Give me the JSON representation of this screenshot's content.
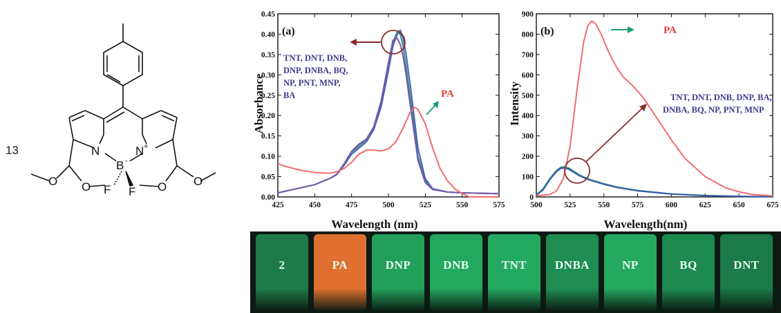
{
  "compound": {
    "number": "13",
    "atoms": {
      "n_left": "N",
      "boron": "B",
      "boron_charge": "-",
      "n_right": "N",
      "n_right_charge": "+",
      "f_left": "F",
      "f_right": "F"
    }
  },
  "colors": {
    "analytes": "#2c8f86",
    "pa": "#f26c6c",
    "analyte_text": "#3d3a8c",
    "pa_text": "#e8383c",
    "arrow_dark": "#8a2a2a",
    "arrow_green": "#19a07a"
  },
  "chart_data": [
    {
      "type": "line",
      "panel": "(a)",
      "xlabel": "Wavelength (nm)",
      "ylabel": "Absorbance",
      "xlim": [
        425,
        575
      ],
      "ylim": [
        0.0,
        0.45
      ],
      "x_ticks": [
        "425",
        "450",
        "475",
        "500",
        "525",
        "550",
        "575"
      ],
      "y_ticks": [
        "0.00",
        "0.05",
        "0.10",
        "0.15",
        "0.20",
        "0.25",
        "0.30",
        "0.35",
        "0.40",
        "0.45"
      ],
      "annotations": {
        "group": [
          "TNT, DNT, DNB,",
          "DNP, DNBA, BQ,",
          "NP, PNT, MNP,",
          "BA"
        ],
        "pa": "PA"
      },
      "series": [
        {
          "name": "TNT, DNT, DNB, DNP, DNBA, BQ, NP, PNT, MNP, BA",
          "color": "#2c8f86",
          "x": [
            425,
            450,
            460,
            465,
            470,
            475,
            480,
            485,
            490,
            495,
            500,
            503,
            506,
            508,
            510,
            512,
            515,
            520,
            525,
            530,
            540,
            550,
            575
          ],
          "values": [
            0.01,
            0.03,
            0.045,
            0.055,
            0.08,
            0.11,
            0.125,
            0.14,
            0.17,
            0.23,
            0.32,
            0.38,
            0.405,
            0.4,
            0.37,
            0.32,
            0.24,
            0.1,
            0.04,
            0.02,
            0.012,
            0.01,
            0.008
          ]
        },
        {
          "name": "",
          "color": "#4a62b8",
          "x": [
            425,
            450,
            460,
            465,
            470,
            475,
            480,
            485,
            490,
            495,
            500,
            503,
            506,
            508,
            510,
            512,
            515,
            520,
            525,
            530,
            540,
            550,
            575
          ],
          "values": [
            0.01,
            0.03,
            0.045,
            0.055,
            0.078,
            0.105,
            0.12,
            0.135,
            0.165,
            0.22,
            0.31,
            0.37,
            0.4,
            0.41,
            0.39,
            0.35,
            0.27,
            0.12,
            0.045,
            0.02,
            0.012,
            0.01,
            0.008
          ]
        },
        {
          "name": "",
          "color": "#7a5aa8",
          "x": [
            425,
            450,
            460,
            465,
            470,
            475,
            480,
            485,
            490,
            495,
            500,
            503,
            506,
            508,
            510,
            512,
            515,
            520,
            525,
            530,
            540,
            550,
            575
          ],
          "values": [
            0.01,
            0.03,
            0.045,
            0.056,
            0.082,
            0.112,
            0.13,
            0.142,
            0.172,
            0.235,
            0.33,
            0.385,
            0.39,
            0.375,
            0.345,
            0.3,
            0.22,
            0.09,
            0.035,
            0.018,
            0.012,
            0.01,
            0.008
          ]
        },
        {
          "name": "PA",
          "color": "#f26c6c",
          "x": [
            425,
            430,
            440,
            450,
            460,
            465,
            470,
            475,
            480,
            485,
            490,
            495,
            500,
            505,
            510,
            515,
            518,
            520,
            525,
            530,
            535,
            540,
            545,
            550,
            555,
            560,
            575
          ],
          "values": [
            0.082,
            0.075,
            0.066,
            0.06,
            0.058,
            0.062,
            0.07,
            0.085,
            0.105,
            0.115,
            0.115,
            0.113,
            0.118,
            0.135,
            0.17,
            0.21,
            0.22,
            0.215,
            0.18,
            0.12,
            0.07,
            0.04,
            0.02,
            0.008,
            0.0,
            0.0,
            0.0
          ]
        }
      ]
    },
    {
      "type": "line",
      "panel": "(b)",
      "xlabel": "Wavelength(nm)",
      "ylabel": "Intensity",
      "xlim": [
        500,
        675
      ],
      "ylim": [
        0,
        900
      ],
      "x_ticks": [
        "500",
        "525",
        "550",
        "575",
        "600",
        "625",
        "650",
        "675"
      ],
      "y_ticks": [
        "0",
        "100",
        "200",
        "300",
        "400",
        "500",
        "600",
        "700",
        "800",
        "900"
      ],
      "annotations": {
        "group": [
          "TNT, DNT, DNB, DNP, BA,",
          "DNBA, BQ, NP, PNT, MNP"
        ],
        "pa": "PA"
      },
      "series": [
        {
          "name": "TNT, DNT, DNB, DNP, BA, DNBA, BQ, NP, PNT, MNP",
          "color": "#2c8f86",
          "x": [
            500,
            505,
            510,
            515,
            518,
            521,
            524,
            528,
            532,
            536,
            540,
            550,
            560,
            575,
            600,
            625,
            650,
            675
          ],
          "values": [
            10,
            40,
            90,
            130,
            145,
            148,
            142,
            125,
            108,
            95,
            85,
            65,
            48,
            32,
            15,
            7,
            3,
            1
          ]
        },
        {
          "name": "",
          "color": "#3a5aa8",
          "x": [
            500,
            505,
            510,
            515,
            518,
            521,
            524,
            528,
            532,
            536,
            540,
            550,
            560,
            575,
            600,
            625,
            650,
            675
          ],
          "values": [
            8,
            35,
            85,
            125,
            140,
            142,
            136,
            120,
            104,
            92,
            82,
            62,
            46,
            30,
            14,
            6,
            3,
            1
          ]
        },
        {
          "name": "PA",
          "color": "#f26c6c",
          "x": [
            500,
            510,
            515,
            520,
            525,
            530,
            535,
            538,
            541,
            544,
            548,
            552,
            556,
            560,
            565,
            570,
            575,
            580,
            585,
            590,
            600,
            610,
            625,
            640,
            650,
            660,
            675
          ],
          "values": [
            5,
            12,
            30,
            90,
            250,
            520,
            760,
            840,
            865,
            850,
            800,
            735,
            680,
            630,
            585,
            555,
            520,
            480,
            430,
            380,
            280,
            190,
            100,
            45,
            25,
            12,
            5
          ]
        }
      ]
    }
  ],
  "photo": {
    "vials": [
      {
        "label": "2",
        "color": "#1f7a4a"
      },
      {
        "label": "PA",
        "color": "#e07030"
      },
      {
        "label": "DNP",
        "color": "#22a05a"
      },
      {
        "label": "DNB",
        "color": "#23a85e"
      },
      {
        "label": "TNT",
        "color": "#24aa60"
      },
      {
        "label": "DNBA",
        "color": "#1f8c52"
      },
      {
        "label": "NP",
        "color": "#26a85f"
      },
      {
        "label": "BQ",
        "color": "#1d8a50"
      },
      {
        "label": "DNT",
        "color": "#1b7a48"
      }
    ]
  }
}
